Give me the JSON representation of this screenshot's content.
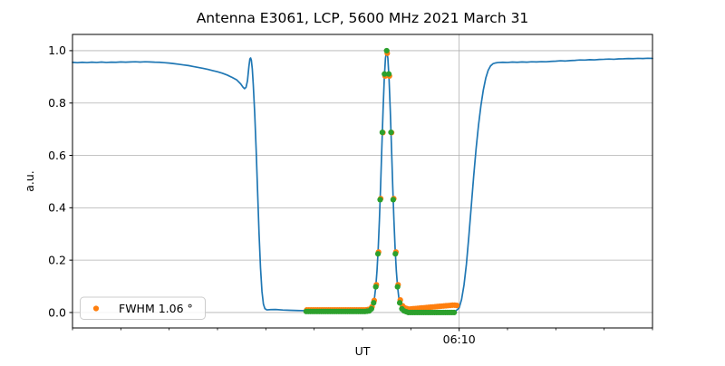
{
  "figure": {
    "title": "Antenna E3061, LCP, 5600 MHz 2021 March 31"
  },
  "axes": {
    "xlabel": "UT",
    "ylabel": "a.u.",
    "x_major_tick_label": "06:10",
    "yticks": [
      {
        "v": 0.0,
        "label": "0.0"
      },
      {
        "v": 0.2,
        "label": "0.2"
      },
      {
        "v": 0.4,
        "label": "0.4"
      },
      {
        "v": 0.6,
        "label": "0.6"
      },
      {
        "v": 0.8,
        "label": "0.8"
      },
      {
        "v": 1.0,
        "label": "1.0"
      }
    ]
  },
  "legend": {
    "label": "FWHM 1.06 °",
    "marker_color": "#ff7f0e"
  },
  "colors": {
    "signal_line": "#1f77b4",
    "data_dots": "#2ca02c",
    "fit_dots": "#ff7f0e",
    "grid": "#b0b0b0",
    "spine": "#000000",
    "background": "#ffffff"
  },
  "chart_data": {
    "type": "line",
    "title": "Antenna E3061, LCP, 5600 MHz 2021 March 31",
    "xlabel": "UT",
    "ylabel": "a.u.",
    "x_range_minutes": [
      2.0,
      14.0
    ],
    "ylim": [
      -0.059,
      1.062
    ],
    "grid_y_values": [
      0.0,
      0.2,
      0.4,
      0.6,
      0.8,
      1.0
    ],
    "x_minor_tick_minutes": [
      2,
      3,
      4,
      5,
      6,
      7,
      8,
      9,
      11,
      12,
      13,
      14
    ],
    "x_major_tick_minutes": [
      10
    ],
    "x_major_tick_labels": [
      "06:10"
    ],
    "legend_position": "lower-left",
    "series": [
      {
        "name": "signal",
        "type": "line",
        "color": "#1f77b4",
        "points": [
          [
            2.0,
            0.9555
          ],
          [
            2.1,
            0.954
          ],
          [
            2.2,
            0.9555
          ],
          [
            2.3,
            0.9545
          ],
          [
            2.4,
            0.956
          ],
          [
            2.5,
            0.955
          ],
          [
            2.6,
            0.9565
          ],
          [
            2.7,
            0.955
          ],
          [
            2.8,
            0.956
          ],
          [
            2.9,
            0.9555
          ],
          [
            3.0,
            0.957
          ],
          [
            3.1,
            0.956
          ],
          [
            3.2,
            0.957
          ],
          [
            3.3,
            0.9575
          ],
          [
            3.4,
            0.9565
          ],
          [
            3.5,
            0.9575
          ],
          [
            3.6,
            0.957
          ],
          [
            3.7,
            0.956
          ],
          [
            3.8,
            0.9555
          ],
          [
            3.9,
            0.954
          ],
          [
            4.0,
            0.9525
          ],
          [
            4.1,
            0.9505
          ],
          [
            4.2,
            0.948
          ],
          [
            4.3,
            0.9455
          ],
          [
            4.4,
            0.943
          ],
          [
            4.5,
            0.9395
          ],
          [
            4.6,
            0.936
          ],
          [
            4.7,
            0.9325
          ],
          [
            4.8,
            0.9285
          ],
          [
            4.9,
            0.924
          ],
          [
            5.0,
            0.9195
          ],
          [
            5.1,
            0.914
          ],
          [
            5.2,
            0.907
          ],
          [
            5.3,
            0.898
          ],
          [
            5.4,
            0.888
          ],
          [
            5.48,
            0.873
          ],
          [
            5.53,
            0.86
          ],
          [
            5.56,
            0.855
          ],
          [
            5.59,
            0.86
          ],
          [
            5.62,
            0.885
          ],
          [
            5.65,
            0.94
          ],
          [
            5.67,
            0.968
          ],
          [
            5.685,
            0.972
          ],
          [
            5.7,
            0.964
          ],
          [
            5.72,
            0.93
          ],
          [
            5.74,
            0.87
          ],
          [
            5.77,
            0.76
          ],
          [
            5.8,
            0.62
          ],
          [
            5.83,
            0.46
          ],
          [
            5.86,
            0.3
          ],
          [
            5.89,
            0.17
          ],
          [
            5.92,
            0.08
          ],
          [
            5.95,
            0.032
          ],
          [
            5.98,
            0.015
          ],
          [
            6.02,
            0.01
          ],
          [
            6.1,
            0.011
          ],
          [
            6.2,
            0.0115
          ],
          [
            6.35,
            0.0095
          ],
          [
            6.5,
            0.0085
          ],
          [
            6.65,
            0.0075
          ],
          [
            6.8,
            0.007
          ],
          [
            6.95,
            0.0065
          ],
          [
            7.1,
            0.006
          ],
          [
            7.25,
            0.006
          ],
          [
            7.4,
            0.0055
          ],
          [
            7.55,
            0.0055
          ],
          [
            7.7,
            0.005
          ],
          [
            7.85,
            0.005
          ],
          [
            8.0,
            0.0055
          ],
          [
            8.1,
            0.006
          ],
          [
            8.15,
            0.008
          ],
          [
            8.2,
            0.02
          ],
          [
            8.25,
            0.059
          ],
          [
            8.275,
            0.099
          ],
          [
            8.3,
            0.159
          ],
          [
            8.325,
            0.244
          ],
          [
            8.35,
            0.354
          ],
          [
            8.375,
            0.485
          ],
          [
            8.4,
            0.63
          ],
          [
            8.425,
            0.77
          ],
          [
            8.45,
            0.89
          ],
          [
            8.475,
            0.971
          ],
          [
            8.5,
            1.0
          ],
          [
            8.525,
            0.971
          ],
          [
            8.55,
            0.89
          ],
          [
            8.575,
            0.77
          ],
          [
            8.6,
            0.63
          ],
          [
            8.625,
            0.485
          ],
          [
            8.65,
            0.354
          ],
          [
            8.675,
            0.244
          ],
          [
            8.7,
            0.159
          ],
          [
            8.725,
            0.099
          ],
          [
            8.75,
            0.059
          ],
          [
            8.8,
            0.02
          ],
          [
            8.85,
            0.008
          ],
          [
            8.9,
            0.0045
          ],
          [
            9.0,
            0.003
          ],
          [
            9.15,
            0.002
          ],
          [
            9.3,
            0.001
          ],
          [
            9.45,
            0.0005
          ],
          [
            9.6,
            0.0005
          ],
          [
            9.75,
            0.0015
          ],
          [
            9.85,
            0.003
          ],
          [
            9.92,
            0.005
          ],
          [
            9.97,
            0.012
          ],
          [
            10.0,
            0.018
          ],
          [
            10.05,
            0.05
          ],
          [
            10.1,
            0.105
          ],
          [
            10.15,
            0.185
          ],
          [
            10.2,
            0.29
          ],
          [
            10.25,
            0.405
          ],
          [
            10.3,
            0.52
          ],
          [
            10.35,
            0.625
          ],
          [
            10.4,
            0.715
          ],
          [
            10.45,
            0.79
          ],
          [
            10.5,
            0.85
          ],
          [
            10.55,
            0.895
          ],
          [
            10.6,
            0.925
          ],
          [
            10.65,
            0.942
          ],
          [
            10.7,
            0.95
          ],
          [
            10.75,
            0.953
          ],
          [
            10.8,
            0.9545
          ],
          [
            10.9,
            0.9555
          ],
          [
            11.0,
            0.955
          ],
          [
            11.1,
            0.9565
          ],
          [
            11.2,
            0.9555
          ],
          [
            11.3,
            0.957
          ],
          [
            11.4,
            0.956
          ],
          [
            11.5,
            0.9575
          ],
          [
            11.6,
            0.957
          ],
          [
            11.7,
            0.958
          ],
          [
            11.8,
            0.9575
          ],
          [
            11.9,
            0.959
          ],
          [
            12.0,
            0.96
          ],
          [
            12.1,
            0.9615
          ],
          [
            12.2,
            0.9605
          ],
          [
            12.3,
            0.962
          ],
          [
            12.4,
            0.963
          ],
          [
            12.5,
            0.9645
          ],
          [
            12.6,
            0.964
          ],
          [
            12.7,
            0.9655
          ],
          [
            12.8,
            0.965
          ],
          [
            12.9,
            0.9665
          ],
          [
            13.0,
            0.967
          ],
          [
            13.1,
            0.968
          ],
          [
            13.2,
            0.967
          ],
          [
            13.3,
            0.9685
          ],
          [
            13.4,
            0.969
          ],
          [
            13.5,
            0.97
          ],
          [
            13.6,
            0.9695
          ],
          [
            13.7,
            0.9705
          ],
          [
            13.8,
            0.97
          ],
          [
            13.9,
            0.971
          ],
          [
            14.0,
            0.9705
          ]
        ]
      },
      {
        "name": "gaussian-fit",
        "type": "scatter",
        "color": "#ff7f0e",
        "points": [
          [
            6.847,
            0.01
          ],
          [
            6.892,
            0.01
          ],
          [
            6.937,
            0.01
          ],
          [
            6.982,
            0.01
          ],
          [
            7.027,
            0.01
          ],
          [
            7.072,
            0.01
          ],
          [
            7.117,
            0.01
          ],
          [
            7.162,
            0.01
          ],
          [
            7.207,
            0.01
          ],
          [
            7.252,
            0.01
          ],
          [
            7.297,
            0.01
          ],
          [
            7.342,
            0.01
          ],
          [
            7.387,
            0.01
          ],
          [
            7.432,
            0.01
          ],
          [
            7.477,
            0.01
          ],
          [
            7.522,
            0.01
          ],
          [
            7.567,
            0.01
          ],
          [
            7.612,
            0.01
          ],
          [
            7.657,
            0.01
          ],
          [
            7.702,
            0.01
          ],
          [
            7.747,
            0.01
          ],
          [
            7.792,
            0.01
          ],
          [
            7.837,
            0.01
          ],
          [
            7.882,
            0.01
          ],
          [
            7.927,
            0.01
          ],
          [
            7.972,
            0.01
          ],
          [
            8.017,
            0.01
          ],
          [
            8.062,
            0.01
          ],
          [
            8.107,
            0.011
          ],
          [
            8.152,
            0.013
          ],
          [
            8.197,
            0.022
          ],
          [
            8.242,
            0.046
          ],
          [
            8.287,
            0.106
          ],
          [
            8.332,
            0.231
          ],
          [
            8.377,
            0.435
          ],
          [
            8.422,
            0.687
          ],
          [
            8.467,
            0.903
          ],
          [
            8.512,
            0.99
          ],
          [
            8.557,
            0.903
          ],
          [
            8.602,
            0.687
          ],
          [
            8.647,
            0.435
          ],
          [
            8.692,
            0.231
          ],
          [
            8.737,
            0.106
          ],
          [
            8.782,
            0.048
          ],
          [
            8.827,
            0.026
          ],
          [
            8.872,
            0.018
          ],
          [
            8.917,
            0.015
          ],
          [
            8.962,
            0.013
          ],
          [
            9.007,
            0.0137
          ],
          [
            9.052,
            0.0145
          ],
          [
            9.097,
            0.0152
          ],
          [
            9.142,
            0.016
          ],
          [
            9.187,
            0.0167
          ],
          [
            9.232,
            0.0175
          ],
          [
            9.277,
            0.0182
          ],
          [
            9.322,
            0.019
          ],
          [
            9.367,
            0.0197
          ],
          [
            9.412,
            0.0205
          ],
          [
            9.457,
            0.0212
          ],
          [
            9.502,
            0.022
          ],
          [
            9.547,
            0.0227
          ],
          [
            9.592,
            0.0235
          ],
          [
            9.637,
            0.0242
          ],
          [
            9.682,
            0.025
          ],
          [
            9.727,
            0.0257
          ],
          [
            9.772,
            0.0265
          ],
          [
            9.817,
            0.0272
          ],
          [
            9.862,
            0.028
          ],
          [
            9.907,
            0.028
          ],
          [
            9.952,
            0.027
          ]
        ]
      },
      {
        "name": "data-points",
        "type": "scatter",
        "color": "#2ca02c",
        "points": [
          [
            6.835,
            0.004
          ],
          [
            6.88,
            0.004
          ],
          [
            6.925,
            0.004
          ],
          [
            6.97,
            0.004
          ],
          [
            7.015,
            0.004
          ],
          [
            7.06,
            0.004
          ],
          [
            7.105,
            0.004
          ],
          [
            7.15,
            0.004
          ],
          [
            7.195,
            0.004
          ],
          [
            7.24,
            0.004
          ],
          [
            7.285,
            0.004
          ],
          [
            7.33,
            0.004
          ],
          [
            7.375,
            0.004
          ],
          [
            7.42,
            0.004
          ],
          [
            7.465,
            0.004
          ],
          [
            7.51,
            0.004
          ],
          [
            7.555,
            0.004
          ],
          [
            7.6,
            0.004
          ],
          [
            7.645,
            0.004
          ],
          [
            7.69,
            0.004
          ],
          [
            7.735,
            0.004
          ],
          [
            7.78,
            0.004
          ],
          [
            7.825,
            0.004
          ],
          [
            7.87,
            0.004
          ],
          [
            7.915,
            0.004
          ],
          [
            7.96,
            0.004
          ],
          [
            8.005,
            0.004
          ],
          [
            8.05,
            0.004
          ],
          [
            8.095,
            0.005
          ],
          [
            8.14,
            0.006
          ],
          [
            8.185,
            0.014
          ],
          [
            8.23,
            0.037
          ],
          [
            8.275,
            0.098
          ],
          [
            8.32,
            0.224
          ],
          [
            8.365,
            0.431
          ],
          [
            8.41,
            0.688
          ],
          [
            8.455,
            0.911
          ],
          [
            8.5,
            1.0
          ],
          [
            8.545,
            0.911
          ],
          [
            8.59,
            0.688
          ],
          [
            8.635,
            0.431
          ],
          [
            8.68,
            0.224
          ],
          [
            8.725,
            0.098
          ],
          [
            8.77,
            0.037
          ],
          [
            8.815,
            0.014
          ],
          [
            8.86,
            0.006
          ],
          [
            8.905,
            0.003
          ],
          [
            8.95,
            0.0
          ],
          [
            8.995,
            0.0
          ],
          [
            9.04,
            0.0
          ],
          [
            9.085,
            0.0
          ],
          [
            9.13,
            0.0
          ],
          [
            9.175,
            0.0
          ],
          [
            9.22,
            0.0
          ],
          [
            9.265,
            0.0
          ],
          [
            9.31,
            0.0
          ],
          [
            9.355,
            0.0
          ],
          [
            9.4,
            0.0
          ],
          [
            9.445,
            0.0
          ],
          [
            9.49,
            0.0
          ],
          [
            9.535,
            0.0
          ],
          [
            9.58,
            0.0
          ],
          [
            9.625,
            0.0
          ],
          [
            9.67,
            0.0
          ],
          [
            9.715,
            0.0
          ],
          [
            9.76,
            0.0
          ],
          [
            9.805,
            0.0
          ],
          [
            9.85,
            0.0
          ],
          [
            9.895,
            0.0
          ]
        ]
      }
    ],
    "legend_entries": [
      {
        "label": "FWHM 1.06 °",
        "series": "gaussian-fit"
      }
    ]
  }
}
